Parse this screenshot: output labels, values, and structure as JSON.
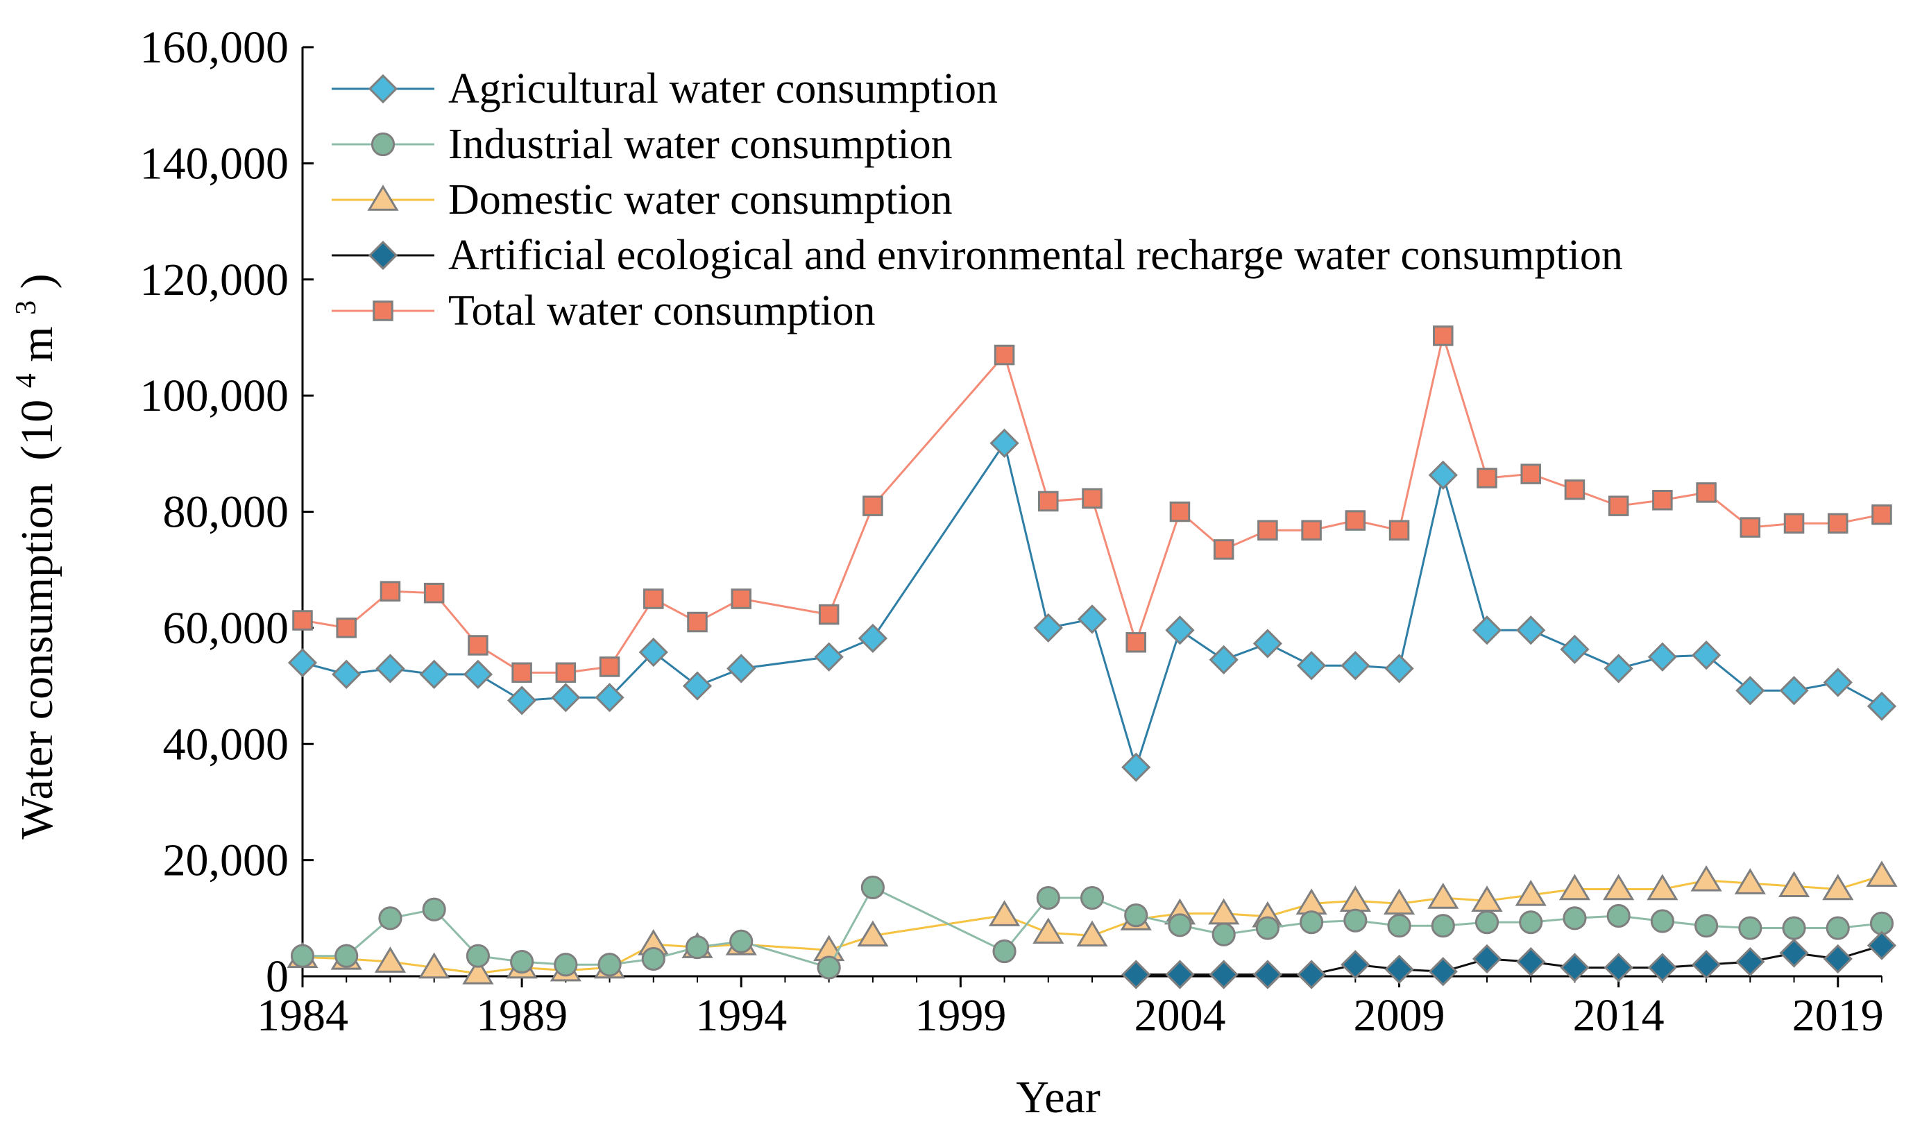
{
  "chart_data": {
    "type": "line",
    "title": "",
    "xlabel": "Year",
    "ylabel": "Water consumption",
    "ylabel_unit_base": "(10",
    "ylabel_unit_exp1": "4",
    "ylabel_unit_mid": "m",
    "ylabel_unit_exp2": "3",
    "ylabel_unit_end": ")",
    "xlim": [
      1984,
      2020
    ],
    "ylim": [
      0,
      160000
    ],
    "xticks": [
      1984,
      1989,
      1994,
      1999,
      2004,
      2009,
      2014,
      2019
    ],
    "xtick_labels": [
      "1984",
      "1989",
      "1994",
      "1999",
      "2004",
      "2009",
      "2014",
      "2019"
    ],
    "yticks": [
      0,
      20000,
      40000,
      60000,
      80000,
      100000,
      120000,
      140000,
      160000
    ],
    "ytick_labels": [
      "0",
      "20,000",
      "40,000",
      "60,000",
      "80,000",
      "100,000",
      "120,000",
      "140,000",
      "160,000"
    ],
    "grid": false,
    "legend_position": "top-left",
    "series": [
      {
        "name": "Agricultural water consumption",
        "color": "#2E7EA6",
        "marker": "diamond",
        "marker_fill": "#4BB8DC",
        "marker_stroke": "#7F7F7F",
        "x": [
          1984,
          1985,
          1986,
          1987,
          1988,
          1989,
          1990,
          1991,
          1992,
          1993,
          1994,
          1996,
          1997,
          2000,
          2001,
          2002,
          2003,
          2004,
          2005,
          2006,
          2007,
          2008,
          2009,
          2010,
          2011,
          2012,
          2013,
          2014,
          2015,
          2016,
          2017,
          2018,
          2019,
          2020
        ],
        "values": [
          54000,
          52000,
          53000,
          52000,
          52000,
          47500,
          48000,
          48000,
          55800,
          50000,
          53000,
          55000,
          58200,
          91800,
          60000,
          61500,
          36000,
          59600,
          54500,
          57300,
          53500,
          53500,
          53000,
          86300,
          59600,
          59600,
          56300,
          53000,
          55000,
          55300,
          49200,
          49200,
          50600,
          46500
        ]
      },
      {
        "name": "Industrial water consumption",
        "color": "#8FBCA8",
        "marker": "circle",
        "marker_fill": "#82B69C",
        "marker_stroke": "#7F7F7F",
        "x": [
          1984,
          1985,
          1986,
          1987,
          1988,
          1989,
          1990,
          1991,
          1992,
          1993,
          1994,
          1996,
          1997,
          2000,
          2001,
          2002,
          2003,
          2004,
          2005,
          2006,
          2007,
          2008,
          2009,
          2010,
          2011,
          2012,
          2013,
          2014,
          2015,
          2016,
          2017,
          2018,
          2019,
          2020
        ],
        "values": [
          3500,
          3500,
          10000,
          11500,
          3500,
          2500,
          2000,
          2000,
          3000,
          5000,
          6000,
          1500,
          15300,
          4300,
          13500,
          13500,
          10500,
          8800,
          7200,
          8300,
          9300,
          9600,
          8700,
          8700,
          9300,
          9300,
          10000,
          10400,
          9500,
          8700,
          8300,
          8300,
          8300,
          9100
        ]
      },
      {
        "name": "Domestic water consumption",
        "color": "#F5C242",
        "marker": "triangle",
        "marker_fill": "#F8C98D",
        "marker_stroke": "#7F7F7F",
        "x": [
          1984,
          1985,
          1986,
          1987,
          1988,
          1989,
          1990,
          1991,
          1992,
          1993,
          1994,
          1996,
          1997,
          2000,
          2001,
          2002,
          2003,
          2004,
          2005,
          2006,
          2007,
          2008,
          2009,
          2010,
          2011,
          2012,
          2013,
          2014,
          2015,
          2016,
          2017,
          2018,
          2019,
          2020
        ],
        "values": [
          3300,
          3000,
          2500,
          1500,
          500,
          1500,
          1000,
          1500,
          5500,
          5000,
          5500,
          4500,
          7000,
          10500,
          7500,
          7000,
          9800,
          10800,
          10800,
          10300,
          12500,
          13000,
          12500,
          13500,
          13000,
          14000,
          15000,
          15000,
          15000,
          16500,
          16000,
          15500,
          15000,
          17300
        ]
      },
      {
        "name": "Artificial ecological and environmental recharge water consumption",
        "color": "#0F0F0F",
        "marker": "diamond",
        "marker_fill": "#1E6F96",
        "marker_stroke": "#7F7F7F",
        "x": [
          2003,
          2004,
          2005,
          2006,
          2007,
          2008,
          2009,
          2010,
          2011,
          2012,
          2013,
          2014,
          2015,
          2016,
          2017,
          2018,
          2019,
          2020
        ],
        "values": [
          300,
          300,
          300,
          300,
          300,
          2000,
          1200,
          800,
          3000,
          2500,
          1500,
          1500,
          1500,
          2000,
          2500,
          4000,
          3000,
          5300
        ]
      },
      {
        "name": "Total water consumption",
        "color": "#F48B76",
        "marker": "square",
        "marker_fill": "#F07C5F",
        "marker_stroke": "#7F7F7F",
        "x": [
          1984,
          1985,
          1986,
          1987,
          1988,
          1989,
          1990,
          1991,
          1992,
          1993,
          1994,
          1996,
          1997,
          2000,
          2001,
          2002,
          2003,
          2004,
          2005,
          2006,
          2007,
          2008,
          2009,
          2010,
          2011,
          2012,
          2013,
          2014,
          2015,
          2016,
          2017,
          2018,
          2019,
          2020
        ],
        "values": [
          61300,
          60000,
          66300,
          66000,
          57000,
          52300,
          52300,
          53300,
          65000,
          61000,
          65000,
          62300,
          81000,
          107000,
          81800,
          82300,
          57500,
          80000,
          73500,
          76800,
          76800,
          78500,
          76800,
          110300,
          85800,
          86500,
          83800,
          81000,
          82000,
          83300,
          77300,
          78000,
          78000,
          79500
        ]
      }
    ]
  }
}
